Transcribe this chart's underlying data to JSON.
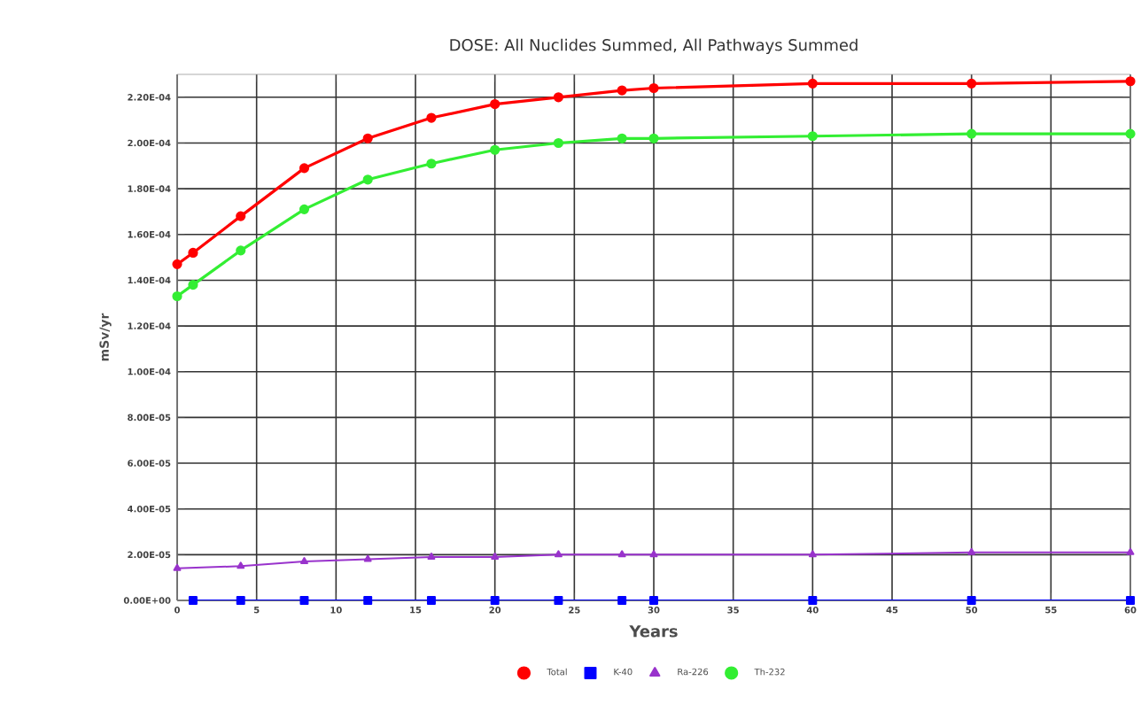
{
  "chart_data": {
    "type": "line",
    "title": "DOSE: All Nuclides Summed, All Pathways Summed",
    "xlabel": "Years",
    "ylabel": "mSv/yr",
    "xlim": [
      0,
      60
    ],
    "xticks": [
      0,
      5,
      10,
      15,
      20,
      25,
      30,
      35,
      40,
      45,
      50,
      55,
      60
    ],
    "ylim": [
      0,
      0.00023
    ],
    "yticks": [
      {
        "value": 0,
        "label": "0.00E+00"
      },
      {
        "value": 2e-05,
        "label": "2.00E-05"
      },
      {
        "value": 4e-05,
        "label": "4.00E-05"
      },
      {
        "value": 6e-05,
        "label": "6.00E-05"
      },
      {
        "value": 8e-05,
        "label": "8.00E-05"
      },
      {
        "value": 0.0001,
        "label": "1.00E-04"
      },
      {
        "value": 0.00012,
        "label": "1.20E-04"
      },
      {
        "value": 0.00014,
        "label": "1.40E-04"
      },
      {
        "value": 0.00016,
        "label": "1.60E-04"
      },
      {
        "value": 0.00018,
        "label": "1.80E-04"
      },
      {
        "value": 0.0002,
        "label": "2.00E-04"
      },
      {
        "value": 0.00022,
        "label": "2.20E-04"
      }
    ],
    "grid": true,
    "legend": "bottom",
    "series": [
      {
        "name": "Total",
        "color": "#ff0000",
        "marker": "circle",
        "x": [
          0,
          1,
          4,
          8,
          12,
          16,
          20,
          24,
          28,
          30,
          40,
          50,
          60
        ],
        "values": [
          0.000147,
          0.000152,
          0.000168,
          0.000189,
          0.000202,
          0.000211,
          0.000217,
          0.00022,
          0.000223,
          0.000224,
          0.000226,
          0.000226,
          0.000227
        ]
      },
      {
        "name": "K-40",
        "color": "#0000ff",
        "marker": "square",
        "x": [
          1,
          4,
          8,
          12,
          16,
          20,
          24,
          28,
          30,
          40,
          50,
          60
        ],
        "values": [
          0,
          0,
          0,
          0,
          0,
          0,
          0,
          0,
          0,
          0,
          0,
          0
        ]
      },
      {
        "name": "Ra-226",
        "color": "#9933cc",
        "marker": "triangle",
        "x": [
          0,
          4,
          8,
          12,
          16,
          20,
          24,
          28,
          30,
          40,
          50,
          60
        ],
        "values": [
          1.4e-05,
          1.5e-05,
          1.7e-05,
          1.8e-05,
          1.9e-05,
          1.9e-05,
          2e-05,
          2e-05,
          2e-05,
          2e-05,
          2.1e-05,
          2.1e-05
        ]
      },
      {
        "name": "Th-232",
        "color": "#33ee33",
        "marker": "circle",
        "x": [
          0,
          1,
          4,
          8,
          12,
          16,
          20,
          24,
          28,
          30,
          40,
          50,
          60
        ],
        "values": [
          0.000133,
          0.000138,
          0.000153,
          0.000171,
          0.000184,
          0.000191,
          0.000197,
          0.0002,
          0.000202,
          0.000202,
          0.000203,
          0.000204,
          0.000204
        ]
      }
    ]
  }
}
